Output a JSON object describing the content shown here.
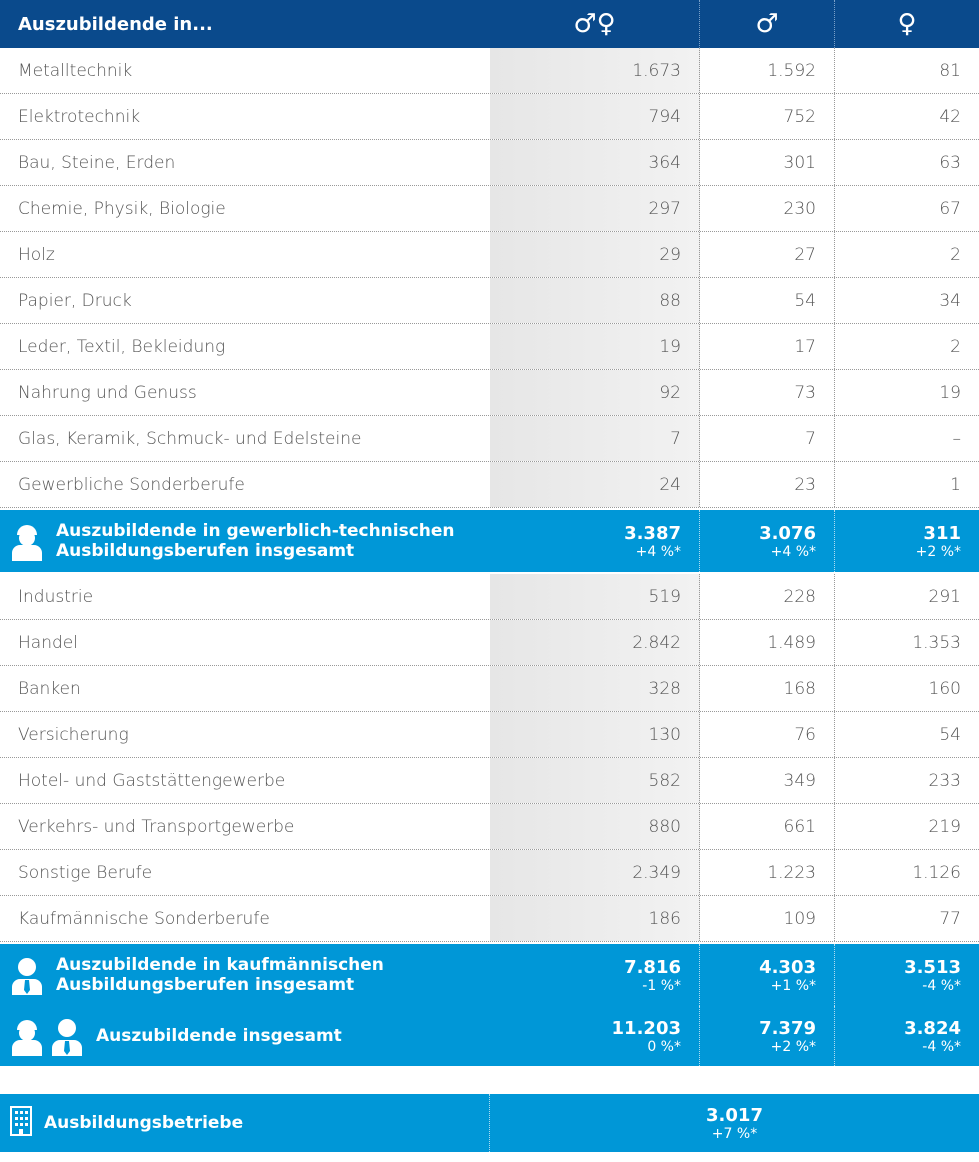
{
  "header": {
    "label": "Auszubildende in...",
    "total": "♂♀",
    "male": "♂",
    "female": "♀"
  },
  "groups": [
    {
      "rows": [
        [
          "Metalltechnik",
          "1.673",
          "1.592",
          "81"
        ],
        [
          "Elektrotechnik",
          "794",
          "752",
          "42"
        ],
        [
          "Bau, Steine, Erden",
          "364",
          "301",
          "63"
        ],
        [
          "Chemie, Physik, Biologie",
          "297",
          "230",
          "67"
        ],
        [
          "Holz",
          "29",
          "27",
          "2"
        ],
        [
          "Papier, Druck",
          "88",
          "54",
          "34"
        ],
        [
          "Leder, Textil, Bekleidung",
          "19",
          "17",
          "2"
        ],
        [
          "Nahrung und Genuss",
          "92",
          "73",
          "19"
        ],
        [
          "Glas, Keramik, Schmuck- und Edelsteine",
          "7",
          "7",
          "–"
        ],
        [
          "Gewerbliche Sonderberufe",
          "24",
          "23",
          "1"
        ]
      ],
      "subtotal": {
        "label_lines": [
          "Auszubildende in gewerblich-technischen",
          "Ausbildungsberufen insgesamt"
        ],
        "values": [
          [
            "3.387",
            "+4 %*"
          ],
          [
            "3.076",
            "+4 %*"
          ],
          [
            "311",
            "+2 %*"
          ]
        ]
      }
    },
    {
      "rows": [
        [
          "Industrie",
          "519",
          "228",
          "291"
        ],
        [
          "Handel",
          "2.842",
          "1.489",
          "1.353"
        ],
        [
          "Banken",
          "328",
          "168",
          "160"
        ],
        [
          "Versicherung",
          "130",
          "76",
          "54"
        ],
        [
          "Hotel- und Gaststättengewerbe",
          "582",
          "349",
          "233"
        ],
        [
          "Verkehrs- und Transportgewerbe",
          "880",
          "661",
          "219"
        ],
        [
          "Sonstige Berufe",
          "2.349",
          "1.223",
          "1.126"
        ],
        [
          "Kaufmännische Sonderberufe",
          "186",
          "109",
          "77"
        ]
      ],
      "subtotal": {
        "label_lines": [
          "Auszubildende in kaufmännischen",
          "Ausbildungsberufen insgesamt"
        ],
        "values": [
          [
            "7.816",
            "-1 %*"
          ],
          [
            "4.303",
            "+1 %*"
          ],
          [
            "3.513",
            "-4 %*"
          ]
        ]
      }
    }
  ],
  "total": {
    "label": "Auszubildende insgesamt",
    "values": [
      [
        "11.203",
        "0 %*"
      ],
      [
        "7.379",
        "+2 %*"
      ],
      [
        "3.824",
        "-4 %*"
      ]
    ]
  },
  "companies": {
    "label": "Ausbildungsbetriebe",
    "value": "3.017",
    "change": "+7 %*"
  }
}
